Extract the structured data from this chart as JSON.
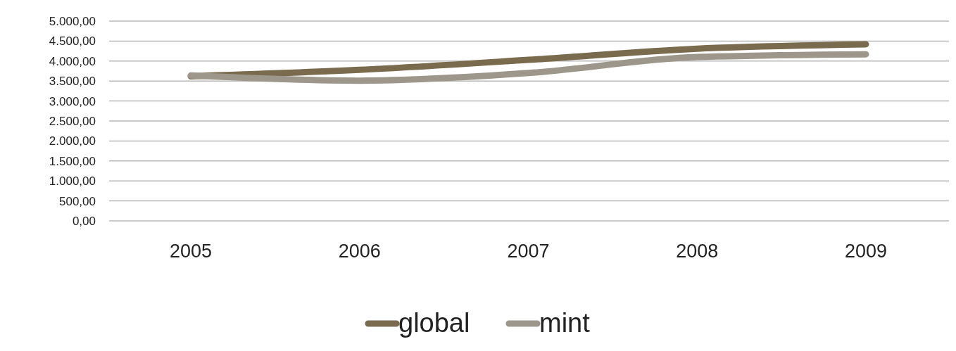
{
  "chart_data": {
    "type": "line",
    "categories": [
      "2005",
      "2006",
      "2007",
      "2008",
      "2009"
    ],
    "series": [
      {
        "name": "global",
        "color": "#7a6b4f",
        "values": [
          3620,
          3780,
          4030,
          4310,
          4420
        ]
      },
      {
        "name": "mint",
        "color": "#9c978a",
        "values": [
          3640,
          3510,
          3700,
          4100,
          4170
        ]
      }
    ],
    "ylim": [
      0,
      5000
    ],
    "yticks": [
      {
        "value": 0,
        "label": "0,00"
      },
      {
        "value": 500,
        "label": "500,00"
      },
      {
        "value": 1000,
        "label": "1.000,00"
      },
      {
        "value": 1500,
        "label": "1.500,00"
      },
      {
        "value": 2000,
        "label": "2.000,00"
      },
      {
        "value": 2500,
        "label": "2.500,00"
      },
      {
        "value": 3000,
        "label": "3.000,00"
      },
      {
        "value": 3500,
        "label": "3.500,00"
      },
      {
        "value": 4000,
        "label": "4.000,00"
      },
      {
        "value": 4500,
        "label": "4.500,00"
      },
      {
        "value": 5000,
        "label": "5.000,00"
      }
    ],
    "grid": "y",
    "legend": "bottom",
    "marker": "none",
    "line_style": "solid"
  }
}
